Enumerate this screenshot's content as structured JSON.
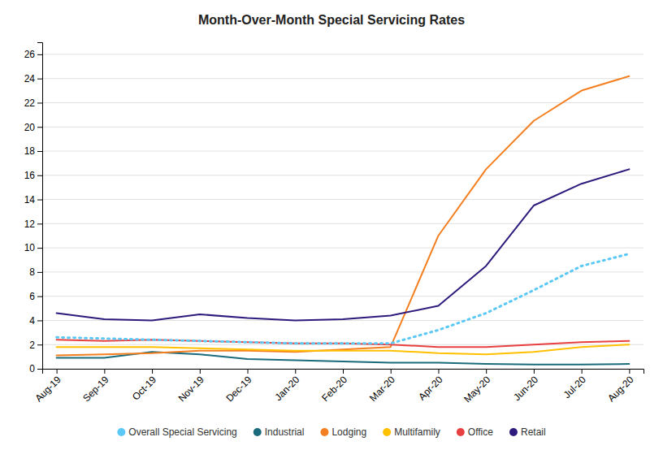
{
  "chart_data": {
    "type": "line",
    "title": "Month-Over-Month Special Servicing Rates",
    "categories": [
      "Aug-19",
      "Sep-19",
      "Oct-19",
      "Nov-19",
      "Dec-19",
      "Jan-20",
      "Feb-20",
      "Mar-20",
      "Apr-20",
      "May-20",
      "Jun-20",
      "Jul-20",
      "Aug-20"
    ],
    "series": [
      {
        "name": "Overall Special Servicing",
        "color": "#5BC8F5",
        "line_style": "dotted",
        "values": [
          2.6,
          2.5,
          2.4,
          2.3,
          2.2,
          2.1,
          2.1,
          2.1,
          3.2,
          4.6,
          6.5,
          8.5,
          9.5
        ]
      },
      {
        "name": "Industrial",
        "color": "#1A6B7C",
        "line_style": "solid",
        "values": [
          0.9,
          0.9,
          1.4,
          1.2,
          0.8,
          0.7,
          0.6,
          0.5,
          0.5,
          0.4,
          0.35,
          0.35,
          0.4
        ]
      },
      {
        "name": "Lodging",
        "color": "#F47F20",
        "line_style": "solid",
        "values": [
          1.1,
          1.2,
          1.3,
          1.5,
          1.5,
          1.4,
          1.6,
          1.8,
          11.0,
          16.5,
          20.5,
          23.0,
          24.2
        ]
      },
      {
        "name": "Multifamily",
        "color": "#FFC000",
        "line_style": "solid",
        "values": [
          1.8,
          1.8,
          1.8,
          1.7,
          1.6,
          1.5,
          1.5,
          1.5,
          1.3,
          1.2,
          1.4,
          1.8,
          2.0
        ]
      },
      {
        "name": "Office",
        "color": "#E84040",
        "line_style": "solid",
        "values": [
          2.4,
          2.3,
          2.4,
          2.3,
          2.2,
          2.1,
          2.1,
          2.0,
          1.8,
          1.8,
          2.0,
          2.2,
          2.3
        ]
      },
      {
        "name": "Retail",
        "color": "#2E1A7C",
        "line_style": "solid",
        "values": [
          4.6,
          4.1,
          4.0,
          4.5,
          4.2,
          4.0,
          4.1,
          4.4,
          5.2,
          8.5,
          13.5,
          15.3,
          16.5
        ]
      }
    ],
    "ylim": [
      0,
      27
    ],
    "yticks": [
      0,
      2,
      4,
      6,
      8,
      10,
      12,
      14,
      16,
      18,
      20,
      22,
      24,
      26
    ],
    "grid": true,
    "legend": "bottom"
  }
}
